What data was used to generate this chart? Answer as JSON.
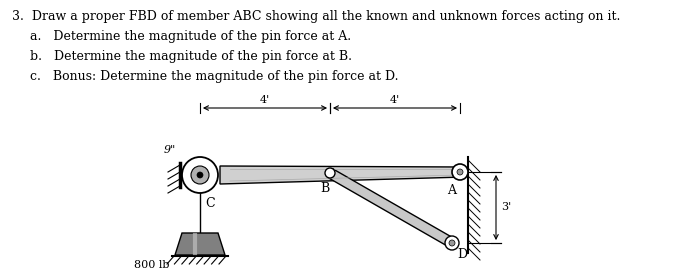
{
  "title": "3.  Draw a proper FBD of member ABC showing all the known and unknown forces acting on it.",
  "sub_a": "a.   Determine the magnitude of the pin force at A.",
  "sub_b": "b.   Determine the magnitude of the pin force at B.",
  "sub_c": "c.   Bonus: Determine the magnitude of the pin force at D.",
  "bg_color": "#ffffff",
  "text_color": "#000000",
  "label_9in": "9\"",
  "label_4ft_1": "4'",
  "label_4ft_2": "4'",
  "label_3ft": "3'",
  "label_800lb": "800 lb",
  "label_C": "C",
  "label_B": "B",
  "label_A": "A",
  "label_D": "D"
}
